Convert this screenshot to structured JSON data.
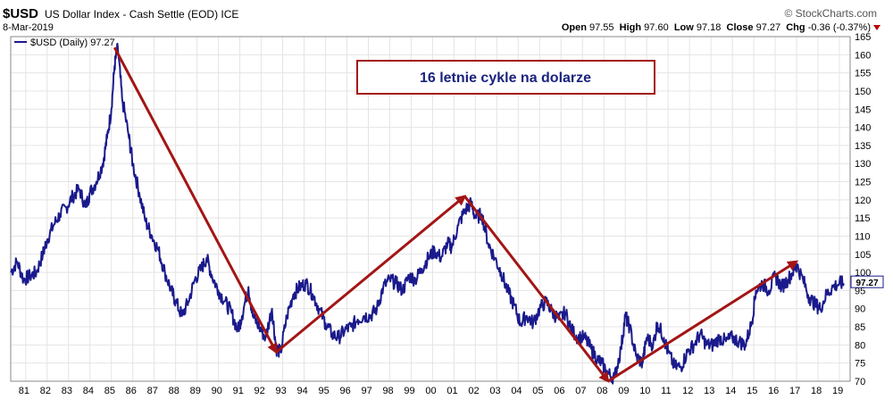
{
  "header": {
    "symbol": "$USD",
    "name": "US Dollar Index - Cash Settle (EOD)",
    "exchange": "ICE",
    "date": "8-Mar-2019",
    "brand": "© StockCharts.com",
    "open_label": "Open",
    "open": "97.55",
    "high_label": "High",
    "high": "97.60",
    "low_label": "Low",
    "low": "97.18",
    "close_label": "Close",
    "close": "97.27",
    "chg_label": "Chg",
    "chg": "-0.36 (-0.37%)"
  },
  "legend": {
    "label": "$USD (Daily) 97.27"
  },
  "annotation": {
    "text": "16 letnie cykle na dolarze"
  },
  "price_tag": "97.27",
  "colors": {
    "series": "#1a1a8c",
    "arrow": "#a31515",
    "grid": "#e4e4e4",
    "box_border": "#a31515",
    "box_text": "#1a237e"
  },
  "chart_data": {
    "type": "line",
    "title": "",
    "xlabel": "",
    "ylabel": "",
    "ylim": [
      70,
      165
    ],
    "xlim": [
      1980.3,
      2019.5
    ],
    "grid": true,
    "legend": "top-left",
    "x_ticks": [
      "81",
      "82",
      "83",
      "84",
      "85",
      "86",
      "87",
      "88",
      "89",
      "90",
      "91",
      "92",
      "93",
      "94",
      "95",
      "96",
      "97",
      "98",
      "99",
      "00",
      "01",
      "02",
      "03",
      "04",
      "05",
      "06",
      "07",
      "08",
      "09",
      "10",
      "11",
      "12",
      "13",
      "14",
      "15",
      "16",
      "17",
      "18",
      "19"
    ],
    "y_ticks": [
      70,
      75,
      80,
      85,
      90,
      95,
      100,
      105,
      110,
      115,
      120,
      125,
      130,
      135,
      140,
      145,
      150,
      155,
      160,
      165
    ],
    "series": [
      {
        "name": "$USD (Daily)",
        "x": [
          1980.3,
          1980.6,
          1980.9,
          1981.2,
          1981.5,
          1981.8,
          1982.0,
          1982.3,
          1982.6,
          1982.9,
          1983.2,
          1983.5,
          1983.8,
          1984.0,
          1984.3,
          1984.6,
          1984.8,
          1985.0,
          1985.15,
          1985.3,
          1985.5,
          1985.8,
          1986.0,
          1986.3,
          1986.6,
          1986.9,
          1987.2,
          1987.5,
          1987.8,
          1988.0,
          1988.3,
          1988.6,
          1988.9,
          1989.2,
          1989.45,
          1989.7,
          1990.0,
          1990.3,
          1990.6,
          1990.9,
          1991.1,
          1991.4,
          1991.6,
          1991.9,
          1992.2,
          1992.5,
          1992.7,
          1992.9,
          1993.2,
          1993.5,
          1993.8,
          1994.1,
          1994.4,
          1994.7,
          1995.0,
          1995.3,
          1995.6,
          1995.9,
          1996.2,
          1996.5,
          1996.8,
          1997.1,
          1997.4,
          1997.7,
          1998.0,
          1998.3,
          1998.6,
          1998.9,
          1999.2,
          1999.5,
          1999.8,
          2000.1,
          2000.4,
          2000.7,
          2000.9,
          2001.2,
          2001.5,
          2001.8,
          2002.0,
          2002.3,
          2002.6,
          2002.9,
          2003.2,
          2003.5,
          2003.8,
          2004.1,
          2004.4,
          2004.7,
          2005.0,
          2005.3,
          2005.6,
          2005.9,
          2006.2,
          2006.5,
          2006.8,
          2007.1,
          2007.4,
          2007.7,
          2007.9,
          2008.2,
          2008.5,
          2008.8,
          2009.0,
          2009.2,
          2009.5,
          2009.8,
          2010.0,
          2010.3,
          2010.5,
          2010.8,
          2011.0,
          2011.3,
          2011.6,
          2011.9,
          2012.2,
          2012.5,
          2012.8,
          2013.1,
          2013.4,
          2013.7,
          2014.0,
          2014.3,
          2014.6,
          2014.9,
          2015.1,
          2015.4,
          2015.7,
          2016.0,
          2016.3,
          2016.6,
          2016.9,
          2017.0,
          2017.3,
          2017.6,
          2017.9,
          2018.1,
          2018.4,
          2018.7,
          2019.0,
          2019.2
        ],
        "values": [
          100,
          103,
          98,
          99,
          100,
          105,
          109,
          113,
          116,
          118,
          121,
          123,
          118,
          122,
          125,
          130,
          137,
          145,
          157,
          162,
          148,
          138,
          130,
          122,
          114,
          110,
          106,
          100,
          95,
          92,
          88,
          92,
          98,
          101,
          104,
          99,
          95,
          92,
          89,
          84,
          88,
          96,
          88,
          85,
          82,
          90,
          79,
          78,
          88,
          94,
          96,
          97,
          94,
          90,
          86,
          83,
          82,
          84,
          85,
          87,
          88,
          88,
          90,
          96,
          98,
          97,
          95,
          99,
          98,
          101,
          104,
          106,
          104,
          108,
          107,
          113,
          117,
          119,
          115,
          116,
          108,
          104,
          100,
          95,
          91,
          86,
          88,
          86,
          90,
          92,
          89,
          87,
          89,
          84,
          82,
          82,
          79,
          76,
          75,
          72,
          71,
          79,
          88,
          85,
          77,
          75,
          82,
          80,
          86,
          82,
          78,
          74,
          74,
          78,
          80,
          83,
          80,
          80,
          82,
          81,
          82,
          81,
          80,
          86,
          95,
          97,
          95,
          99,
          96,
          98,
          101,
          102,
          98,
          93,
          91,
          90,
          94,
          96,
          97,
          97
        ]
      }
    ],
    "arrows": [
      {
        "from": [
          1985.15,
          162
        ],
        "to": [
          1992.7,
          78
        ]
      },
      {
        "from": [
          1992.7,
          78
        ],
        "to": [
          2001.5,
          121
        ]
      },
      {
        "from": [
          2001.5,
          121
        ],
        "to": [
          2008.2,
          70
        ]
      },
      {
        "from": [
          2008.2,
          70
        ],
        "to": [
          2017.0,
          103
        ]
      }
    ]
  }
}
